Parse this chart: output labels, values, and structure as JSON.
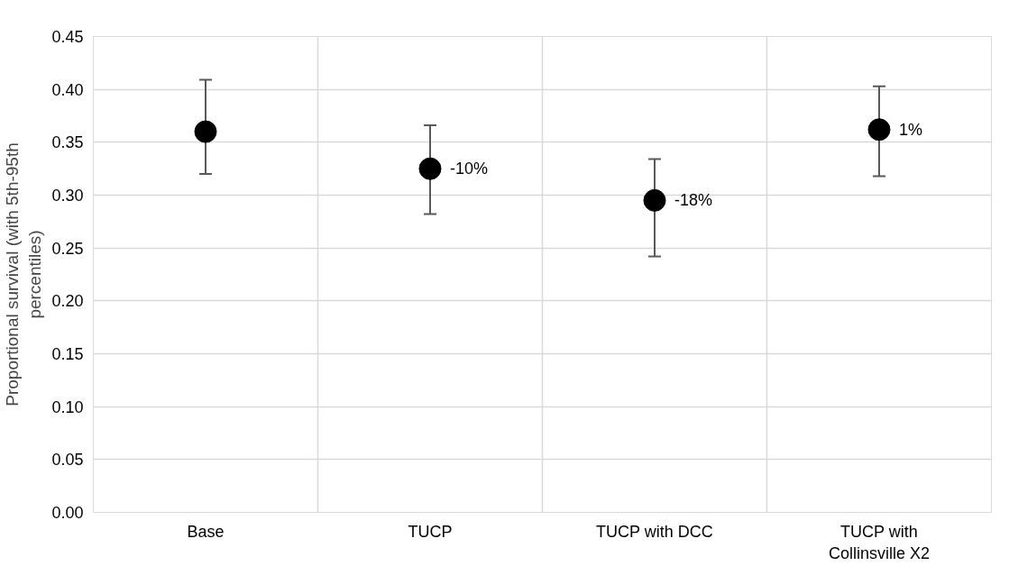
{
  "chart_data": {
    "type": "scatter",
    "ylabel": "Proportional survival (with 5th-95th percentiles)",
    "categories": [
      "Base",
      "TUCP",
      "TUCP with DCC",
      "TUCP with Collinsville X2"
    ],
    "series": [
      {
        "color": "#000000",
        "values": [
          0.36,
          0.325,
          0.295,
          0.362
        ],
        "errors": [
          [
            0.32,
            0.409
          ],
          [
            0.282,
            0.366
          ],
          [
            0.242,
            0.334
          ],
          [
            0.318,
            0.403
          ]
        ]
      }
    ],
    "annotations": [
      {
        "text": "-10%",
        "x": "TUCP",
        "y": 0.325
      },
      {
        "text": "-18%",
        "x": "TUCP with DCC",
        "y": 0.295
      },
      {
        "text": "1%",
        "x": "TUCP with Collinsville X2",
        "y": 0.362
      }
    ],
    "ylim": [
      0,
      0.45
    ],
    "yticks": [
      {
        "value": 0,
        "label": "0.00"
      },
      {
        "value": 0.05,
        "label": "0.05"
      },
      {
        "value": 0.1,
        "label": "0.10"
      },
      {
        "value": 0.15,
        "label": "0.15"
      },
      {
        "value": 0.2,
        "label": "0.20"
      },
      {
        "value": 0.25,
        "label": "0.25"
      },
      {
        "value": 0.3,
        "label": "0.30"
      },
      {
        "value": 0.35,
        "label": "0.35"
      },
      {
        "value": 0.4,
        "label": "0.40"
      },
      {
        "value": 0.45,
        "label": "0.45"
      }
    ],
    "grid": true,
    "marker": "circle"
  }
}
